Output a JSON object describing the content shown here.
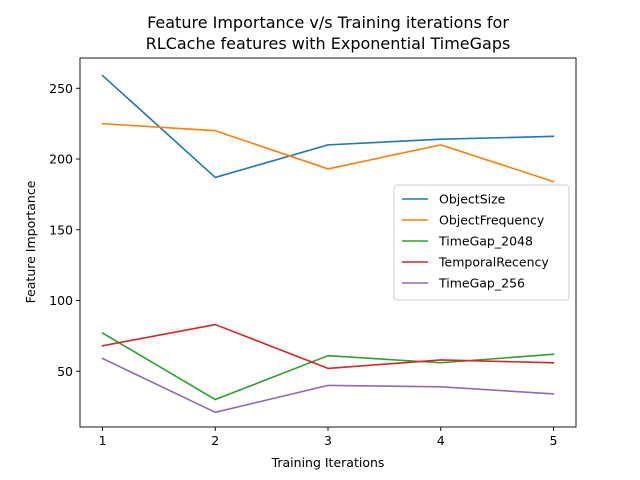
{
  "chart_data": {
    "type": "line",
    "title": [
      "Feature Importance v/s Training iterations for",
      "RLCache features with Exponential TimeGaps"
    ],
    "xlabel": "Training Iterations",
    "ylabel": "Feature Importance",
    "x": [
      1,
      2,
      3,
      4,
      5
    ],
    "xticks": [
      "1",
      "2",
      "3",
      "4",
      "5"
    ],
    "xlim": [
      0.8,
      5.2
    ],
    "yticks": [
      50,
      100,
      150,
      200,
      250
    ],
    "ylim": [
      10.6,
      271.4
    ],
    "grid": false,
    "legend_position": "center-right",
    "series": [
      {
        "name": "ObjectSize",
        "color": "#1f77b4",
        "values": [
          259,
          187,
          210,
          214,
          216
        ]
      },
      {
        "name": "ObjectFrequency",
        "color": "#ff7f0e",
        "values": [
          225,
          220,
          193,
          210,
          184
        ]
      },
      {
        "name": "TimeGap_2048",
        "color": "#2ca02c",
        "values": [
          77,
          30,
          61,
          56,
          62
        ]
      },
      {
        "name": "TemporalRecency",
        "color": "#d62728",
        "values": [
          68,
          83,
          52,
          58,
          56
        ]
      },
      {
        "name": "TimeGap_256",
        "color": "#9467bd",
        "values": [
          59,
          21,
          40,
          39,
          34
        ]
      }
    ]
  }
}
